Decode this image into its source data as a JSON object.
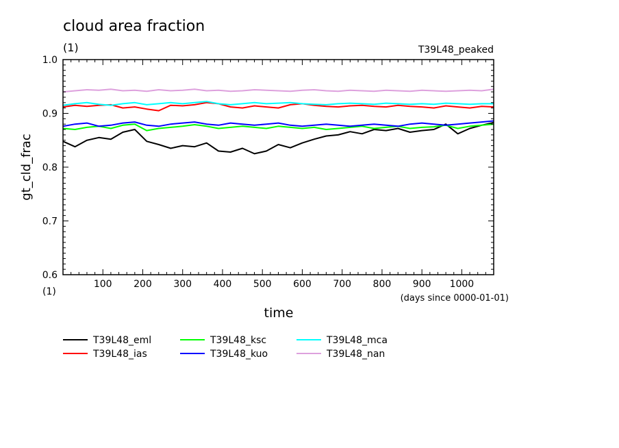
{
  "chart_data": {
    "type": "line",
    "title": "cloud area fraction",
    "subtitle": "(1)",
    "top_right_label": "T39L48_peaked",
    "xlabel": "time",
    "x_units": "(days since 0000-01-01)",
    "ylabel": "gt_cld_frac",
    "y_units": "(1)",
    "xlim": [
      0,
      1080
    ],
    "ylim": [
      0.6,
      1.0
    ],
    "x_ticks": [
      100,
      200,
      300,
      400,
      500,
      600,
      700,
      800,
      900,
      1000
    ],
    "y_ticks": [
      0.6,
      0.7,
      0.8,
      0.9,
      1.0
    ],
    "y_tick_labels": [
      "0.6",
      "0.7",
      "0.8",
      "0.9",
      "1.0"
    ],
    "grid": false,
    "legend_position": "bottom-left",
    "x_step": 30,
    "series": [
      {
        "name": "T39L48_eml",
        "color": "#000000",
        "values": [
          0.848,
          0.838,
          0.85,
          0.855,
          0.852,
          0.865,
          0.87,
          0.848,
          0.842,
          0.835,
          0.84,
          0.838,
          0.845,
          0.83,
          0.828,
          0.835,
          0.825,
          0.83,
          0.842,
          0.836,
          0.845,
          0.852,
          0.858,
          0.86,
          0.866,
          0.862,
          0.87,
          0.868,
          0.872,
          0.865,
          0.868,
          0.87,
          0.88,
          0.862,
          0.872,
          0.878,
          0.883
        ]
      },
      {
        "name": "T39L48_ias",
        "color": "#ff0000",
        "values": [
          0.912,
          0.915,
          0.913,
          0.915,
          0.916,
          0.91,
          0.912,
          0.908,
          0.905,
          0.915,
          0.914,
          0.916,
          0.92,
          0.918,
          0.912,
          0.91,
          0.914,
          0.912,
          0.91,
          0.916,
          0.918,
          0.915,
          0.913,
          0.912,
          0.914,
          0.915,
          0.913,
          0.912,
          0.915,
          0.913,
          0.912,
          0.91,
          0.914,
          0.912,
          0.91,
          0.913,
          0.912
        ]
      },
      {
        "name": "T39L48_ksc",
        "color": "#00ff00",
        "values": [
          0.872,
          0.87,
          0.874,
          0.876,
          0.872,
          0.878,
          0.88,
          0.868,
          0.872,
          0.874,
          0.876,
          0.879,
          0.876,
          0.872,
          0.874,
          0.876,
          0.874,
          0.872,
          0.876,
          0.874,
          0.872,
          0.874,
          0.87,
          0.872,
          0.874,
          0.876,
          0.872,
          0.874,
          0.876,
          0.872,
          0.874,
          0.875,
          0.878,
          0.872,
          0.876,
          0.878,
          0.88
        ]
      },
      {
        "name": "T39L48_kuo",
        "color": "#0000ff",
        "values": [
          0.876,
          0.88,
          0.882,
          0.876,
          0.878,
          0.882,
          0.884,
          0.878,
          0.876,
          0.88,
          0.882,
          0.884,
          0.88,
          0.878,
          0.882,
          0.88,
          0.878,
          0.88,
          0.882,
          0.878,
          0.876,
          0.878,
          0.88,
          0.878,
          0.876,
          0.878,
          0.88,
          0.878,
          0.876,
          0.88,
          0.882,
          0.88,
          0.878,
          0.88,
          0.882,
          0.884,
          0.886
        ]
      },
      {
        "name": "T39L48_mca",
        "color": "#00ffff",
        "values": [
          0.915,
          0.918,
          0.92,
          0.917,
          0.915,
          0.918,
          0.92,
          0.916,
          0.918,
          0.92,
          0.918,
          0.92,
          0.922,
          0.918,
          0.916,
          0.918,
          0.92,
          0.918,
          0.919,
          0.92,
          0.918,
          0.917,
          0.916,
          0.918,
          0.919,
          0.918,
          0.917,
          0.919,
          0.918,
          0.917,
          0.918,
          0.917,
          0.919,
          0.918,
          0.917,
          0.918,
          0.918
        ]
      },
      {
        "name": "T39L48_nan",
        "color": "#dda0dd",
        "values": [
          0.94,
          0.942,
          0.944,
          0.943,
          0.945,
          0.942,
          0.943,
          0.941,
          0.944,
          0.942,
          0.943,
          0.945,
          0.942,
          0.943,
          0.941,
          0.942,
          0.944,
          0.943,
          0.942,
          0.941,
          0.943,
          0.944,
          0.942,
          0.941,
          0.943,
          0.942,
          0.941,
          0.943,
          0.942,
          0.941,
          0.943,
          0.942,
          0.941,
          0.942,
          0.943,
          0.942,
          0.945
        ]
      }
    ]
  }
}
